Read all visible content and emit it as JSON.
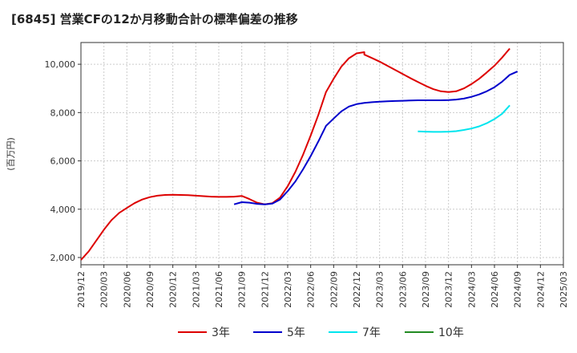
{
  "chart_data": {
    "type": "line",
    "title": "[6845]  営業CFの12か月移動合計の標準偏差の推移",
    "ylabel": "(百万円)",
    "xlabel": "",
    "ylim": [
      1700,
      10900
    ],
    "yticks": [
      2000,
      4000,
      6000,
      8000,
      10000
    ],
    "ytick_labels": [
      "2,000",
      "4,000",
      "6,000",
      "8,000",
      "10,000"
    ],
    "xlim": [
      "2019-12",
      "2025-03"
    ],
    "xtick_labels": [
      "2019/12",
      "2020/03",
      "2020/06",
      "2020/09",
      "2020/12",
      "2021/03",
      "2021/06",
      "2021/09",
      "2021/12",
      "2022/03",
      "2022/06",
      "2022/09",
      "2022/12",
      "2023/03",
      "2023/06",
      "2023/09",
      "2023/12",
      "2024/03",
      "2024/06",
      "2024/09",
      "2024/12",
      "2025/03"
    ],
    "grid": true,
    "legend_position": "bottom",
    "series": [
      {
        "name": "3年",
        "color": "#dd0000",
        "points": [
          [
            "2019-12",
            1900
          ],
          [
            "2020-01",
            2250
          ],
          [
            "2020-02",
            2700
          ],
          [
            "2020-03",
            3150
          ],
          [
            "2020-04",
            3550
          ],
          [
            "2020-05",
            3850
          ],
          [
            "2020-06",
            4050
          ],
          [
            "2020-07",
            4250
          ],
          [
            "2020-08",
            4400
          ],
          [
            "2020-09",
            4500
          ],
          [
            "2020-10",
            4560
          ],
          [
            "2020-11",
            4590
          ],
          [
            "2020-12",
            4600
          ],
          [
            "2021-01",
            4590
          ],
          [
            "2021-02",
            4580
          ],
          [
            "2021-03",
            4560
          ],
          [
            "2021-04",
            4540
          ],
          [
            "2021-05",
            4520
          ],
          [
            "2021-06",
            4510
          ],
          [
            "2021-07",
            4510
          ],
          [
            "2021-08",
            4520
          ],
          [
            "2021-09",
            4550
          ],
          [
            "2021-10",
            4420
          ],
          [
            "2021-11",
            4270
          ],
          [
            "2021-12",
            4200
          ],
          [
            "2022-01",
            4250
          ],
          [
            "2022-02",
            4480
          ],
          [
            "2022-03",
            4950
          ],
          [
            "2022-04",
            5550
          ],
          [
            "2022-05",
            6250
          ],
          [
            "2022-06",
            7050
          ],
          [
            "2022-07",
            7900
          ],
          [
            "2022-08",
            8850
          ],
          [
            "2022-09",
            9400
          ],
          [
            "2022-10",
            9900
          ],
          [
            "2022-11",
            10250
          ],
          [
            "2022-12",
            10450
          ],
          [
            "2022-13",
            10500
          ]
        ]
      },
      {
        "name": "5年",
        "color": "#0000cc",
        "points": [
          [
            "2021-08",
            4200
          ],
          [
            "2021-09",
            4290
          ],
          [
            "2021-10",
            4270
          ],
          [
            "2021-11",
            4220
          ],
          [
            "2021-12",
            4200
          ],
          [
            "2022-01",
            4230
          ],
          [
            "2022-02",
            4400
          ],
          [
            "2022-03",
            4750
          ],
          [
            "2022-04",
            5150
          ],
          [
            "2022-05",
            5650
          ],
          [
            "2022-06",
            6200
          ],
          [
            "2022-07",
            6800
          ],
          [
            "2022-08",
            7450
          ],
          [
            "2022-09",
            7750
          ],
          [
            "2022-10",
            8050
          ],
          [
            "2022-11",
            8250
          ],
          [
            "2022-12",
            8350
          ]
        ]
      },
      {
        "name": "7年",
        "color": "#00e5ee",
        "points": [
          [
            "2023-08",
            7220
          ],
          [
            "2023-09",
            7210
          ],
          [
            "2023-10",
            7200
          ],
          [
            "2023-11",
            7200
          ],
          [
            "2023-12",
            7210
          ],
          [
            "2024-01",
            7230
          ],
          [
            "2024-02",
            7280
          ],
          [
            "2024-03",
            7340
          ],
          [
            "2024-04",
            7430
          ],
          [
            "2024-05",
            7560
          ],
          [
            "2024-06",
            7730
          ],
          [
            "2024-07",
            7950
          ],
          [
            "2024-08",
            8300
          ]
        ]
      },
      {
        "name": "10年",
        "color": "#228b22",
        "points": []
      }
    ],
    "series_tail": {
      "3年": [
        [
          "2023-01",
          10400
        ],
        [
          "2023-02",
          10260
        ],
        [
          "2023-03",
          10110
        ],
        [
          "2023-04",
          9940
        ],
        [
          "2023-05",
          9770
        ],
        [
          "2023-06",
          9600
        ],
        [
          "2023-07",
          9430
        ],
        [
          "2023-08",
          9270
        ],
        [
          "2023-09",
          9110
        ],
        [
          "2023-10",
          8970
        ],
        [
          "2023-11",
          8880
        ],
        [
          "2023-12",
          8850
        ],
        [
          "2024-01",
          8880
        ],
        [
          "2024-02",
          9000
        ],
        [
          "2024-03",
          9180
        ],
        [
          "2024-04",
          9400
        ],
        [
          "2024-05",
          9660
        ],
        [
          "2024-06",
          9940
        ],
        [
          "2024-07",
          10280
        ],
        [
          "2024-08",
          10650
        ]
      ],
      "5年": [
        [
          "2023-01",
          8400
        ],
        [
          "2023-02",
          8430
        ],
        [
          "2023-03",
          8450
        ],
        [
          "2023-04",
          8470
        ],
        [
          "2023-05",
          8480
        ],
        [
          "2023-06",
          8490
        ],
        [
          "2023-07",
          8500
        ],
        [
          "2023-08",
          8510
        ],
        [
          "2023-09",
          8510
        ],
        [
          "2023-10",
          8510
        ],
        [
          "2023-11",
          8510
        ],
        [
          "2023-12",
          8520
        ],
        [
          "2024-01",
          8540
        ],
        [
          "2024-02",
          8580
        ],
        [
          "2024-03",
          8650
        ],
        [
          "2024-04",
          8750
        ],
        [
          "2024-05",
          8880
        ],
        [
          "2024-06",
          9050
        ],
        [
          "2024-07",
          9280
        ],
        [
          "2024-08",
          9560
        ],
        [
          "2024-09",
          9700
        ]
      ]
    }
  }
}
